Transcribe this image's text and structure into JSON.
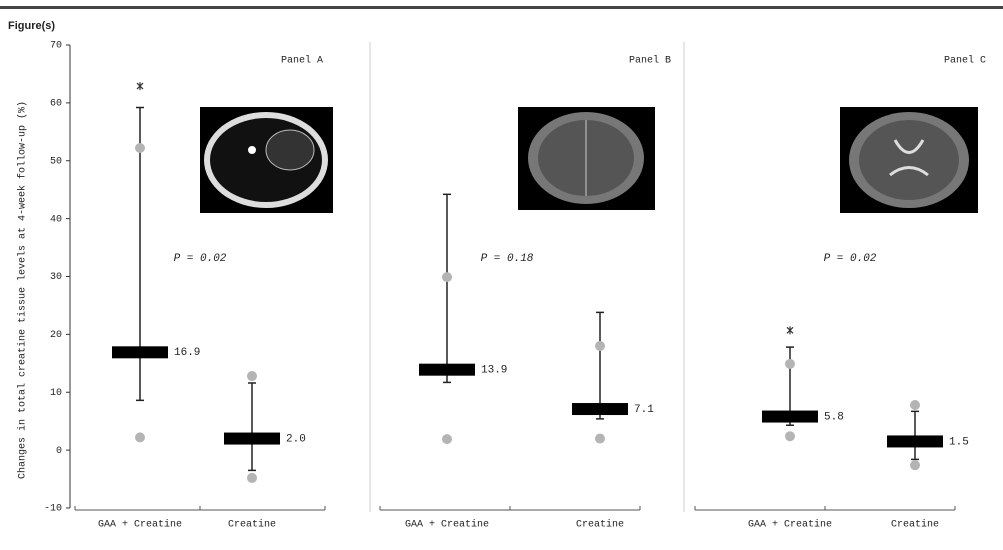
{
  "figure_label": "Figure(s)",
  "chart_data": {
    "type": "median-range",
    "y_label": "Changes in total creatine tissue levels at 4-week follow-up (%)",
    "ylim": [
      -10,
      70
    ],
    "yticks": [
      -10,
      0,
      10,
      20,
      30,
      40,
      50,
      60,
      70
    ],
    "box_color": "#000000",
    "point_color": "#b4b4b4",
    "panels": [
      {
        "title": "Panel A",
        "annotation": "P = 0.02",
        "categories": [
          "GAA + Creatine",
          "Creatine"
        ],
        "medians": [
          16.9,
          2.0
        ],
        "value_labels": [
          "16.9",
          "2.0"
        ],
        "whisker_low": [
          8.6,
          -3.5
        ],
        "whisker_high": [
          59.2,
          11.6
        ],
        "points_high": [
          52.2,
          12.8
        ],
        "points_low": [
          2.2,
          -4.8
        ],
        "outliers": [
          62.9,
          null
        ]
      },
      {
        "title": "Panel B",
        "annotation": "P = 0.18",
        "categories": [
          "GAA + Creatine",
          "Creatine"
        ],
        "medians": [
          13.9,
          7.1
        ],
        "value_labels": [
          "13.9",
          "7.1"
        ],
        "whisker_low": [
          11.7,
          5.4
        ],
        "whisker_high": [
          44.2,
          23.8
        ],
        "points_high": [
          29.9,
          18
        ],
        "points_low": [
          1.9,
          2
        ],
        "outliers": [
          null,
          null
        ]
      },
      {
        "title": "Panel C",
        "annotation": "P = 0.02",
        "categories": [
          "GAA + Creatine",
          "Creatine"
        ],
        "medians": [
          5.8,
          1.5
        ],
        "value_labels": [
          "5.8",
          "1.5"
        ],
        "whisker_low": [
          4.3,
          -1.6
        ],
        "whisker_high": [
          17.8,
          6.7
        ],
        "points_high": [
          14.9,
          7.8
        ],
        "points_low": [
          2.4,
          -2.6
        ],
        "outliers": [
          20.7,
          null
        ]
      }
    ]
  }
}
